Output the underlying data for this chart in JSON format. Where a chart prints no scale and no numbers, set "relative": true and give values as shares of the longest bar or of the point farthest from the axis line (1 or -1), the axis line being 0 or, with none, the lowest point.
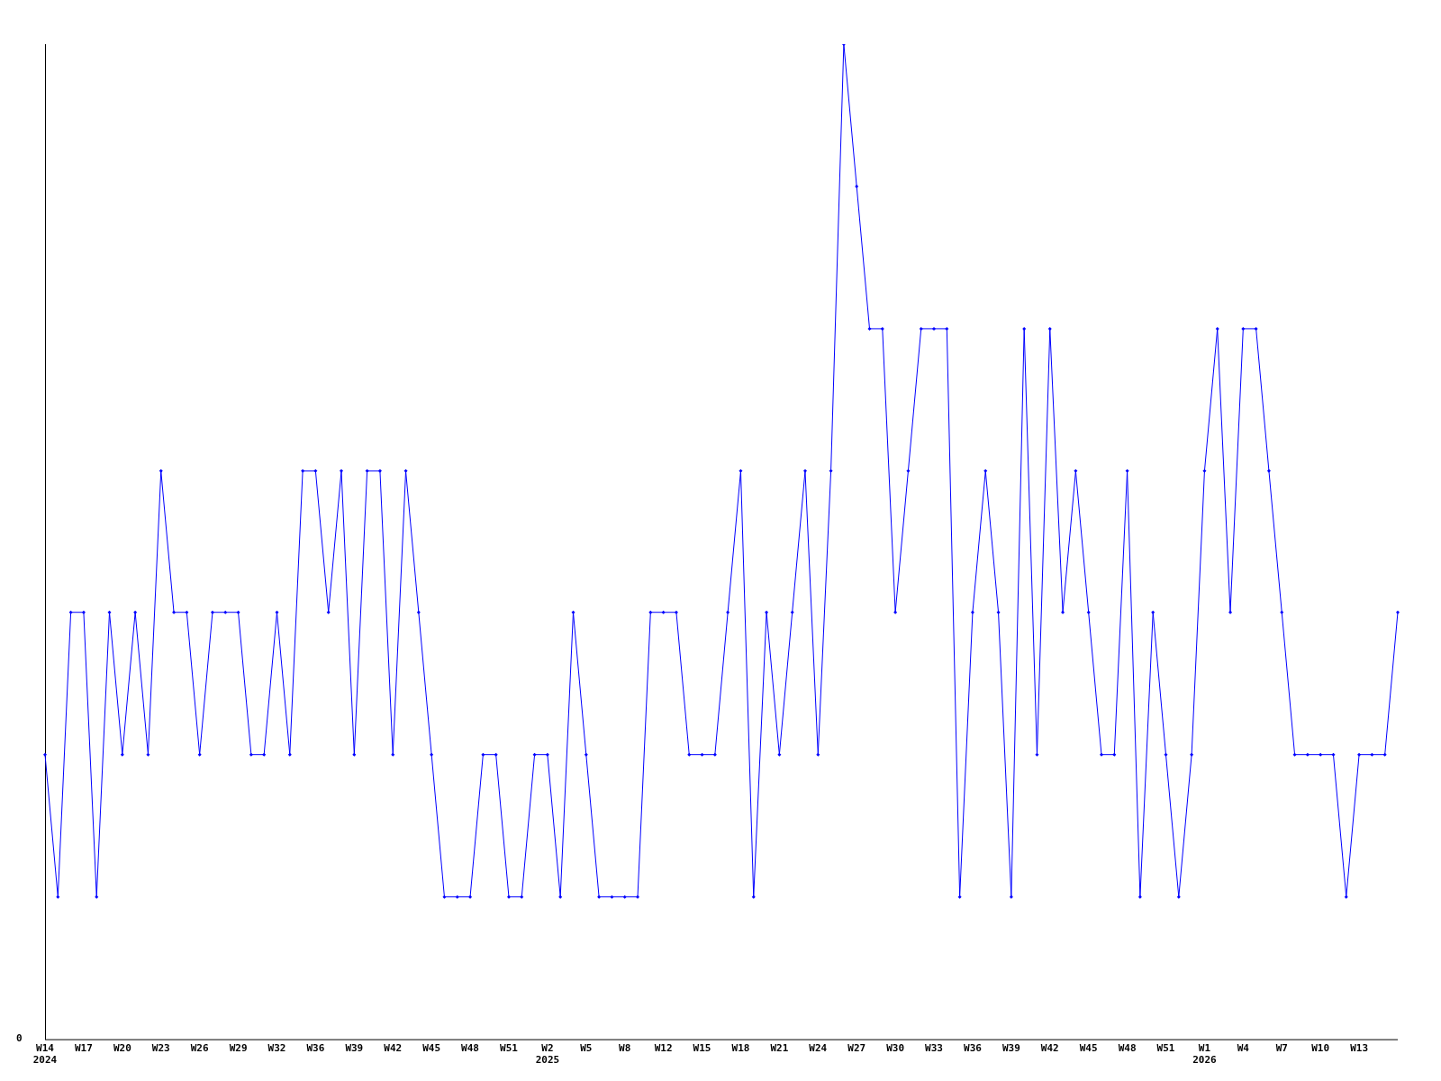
{
  "chart_data": {
    "type": "line",
    "relative": true,
    "annotations": [
      "0"
    ],
    "color": "#0000ff",
    "marker": "diamond",
    "grid": false,
    "legend": false,
    "categories": [
      "W14\n2024",
      null,
      null,
      "W17",
      null,
      null,
      "W20",
      null,
      null,
      "W23",
      null,
      null,
      "W26",
      null,
      null,
      "W29",
      null,
      null,
      "W32",
      null,
      null,
      "W36",
      null,
      null,
      "W39",
      null,
      null,
      "W42",
      null,
      null,
      "W45",
      null,
      null,
      "W48",
      null,
      null,
      "W51",
      null,
      null,
      "W2\n2025",
      null,
      null,
      "W5",
      null,
      null,
      "W8",
      null,
      null,
      "W12",
      null,
      null,
      "W15",
      null,
      null,
      "W18",
      null,
      null,
      "W21",
      null,
      null,
      "W24",
      null,
      null,
      "W27",
      null,
      null,
      "W30",
      null,
      null,
      "W33",
      null,
      null,
      "W36",
      null,
      null,
      "W39",
      null,
      null,
      "W42",
      null,
      null,
      "W45",
      null,
      null,
      "W48",
      null,
      null,
      "W51",
      null,
      null,
      "W1\n2026",
      null,
      null,
      "W4",
      null,
      null,
      "W7",
      null,
      null,
      "W10",
      null,
      null,
      "W13",
      null,
      null,
      null
    ],
    "values": [
      0.286,
      0.143,
      0.429,
      0.429,
      0.143,
      0.429,
      0.286,
      0.429,
      0.286,
      0.571,
      0.429,
      0.429,
      0.286,
      0.429,
      0.429,
      0.429,
      0.286,
      0.286,
      0.429,
      0.286,
      0.571,
      0.571,
      0.429,
      0.571,
      0.286,
      0.571,
      0.571,
      0.286,
      0.571,
      0.429,
      0.286,
      0.143,
      0.143,
      0.143,
      0.286,
      0.286,
      0.143,
      0.143,
      0.286,
      0.286,
      0.143,
      0.429,
      0.286,
      0.143,
      0.143,
      0.143,
      0.143,
      0.429,
      0.429,
      0.429,
      0.286,
      0.286,
      0.286,
      0.429,
      0.571,
      0.143,
      0.429,
      0.286,
      0.429,
      0.571,
      0.286,
      0.571,
      1,
      0.857,
      0.714,
      0.714,
      0.429,
      0.571,
      0.714,
      0.714,
      0.714,
      0.143,
      0.429,
      0.571,
      0.429,
      0.143,
      0.714,
      0.286,
      0.714,
      0.429,
      0.571,
      0.429,
      0.286,
      0.286,
      0.571,
      0.143,
      0.429,
      0.286,
      0.143,
      0.286,
      0.571,
      0.714,
      0.429,
      0.714,
      0.714,
      0.571,
      0.429,
      0.286,
      0.286,
      0.286,
      0.286,
      0.143,
      0.286,
      0.286,
      0.286,
      0.429
    ]
  }
}
